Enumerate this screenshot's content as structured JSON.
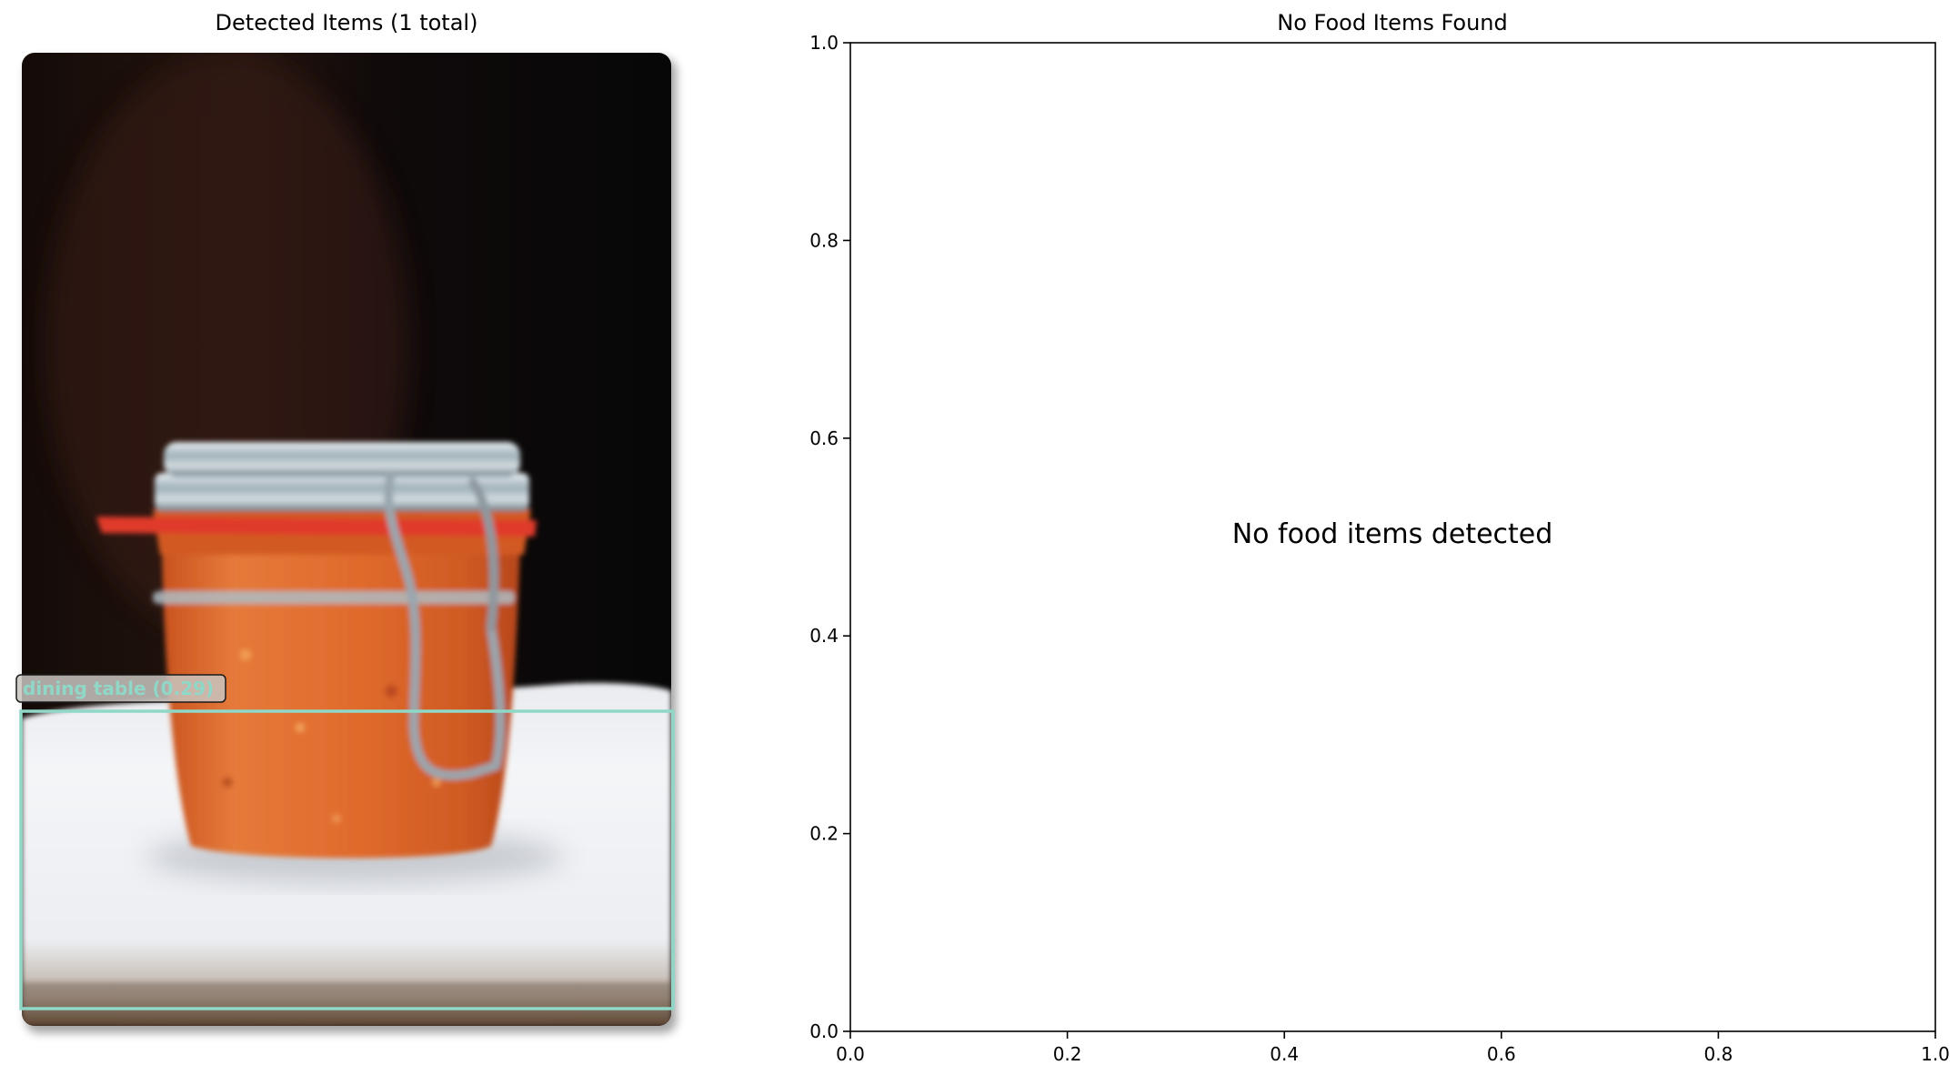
{
  "left_panel": {
    "title": "Detected Items (1 total)",
    "detections": [
      {
        "label": "dining table (0.29)",
        "color": "#8fd8c8"
      }
    ]
  },
  "chart_data": {
    "type": "scatter",
    "title": "No Food Items Found",
    "annotation": "No food items detected",
    "xlabel": "",
    "ylabel": "",
    "xlim": [
      0.0,
      1.0
    ],
    "ylim": [
      0.0,
      1.0
    ],
    "xticks": [
      "0.0",
      "0.2",
      "0.4",
      "0.6",
      "0.8",
      "1.0"
    ],
    "yticks": [
      "0.0",
      "0.2",
      "0.4",
      "0.6",
      "0.8",
      "1.0"
    ],
    "grid": false,
    "series": []
  }
}
